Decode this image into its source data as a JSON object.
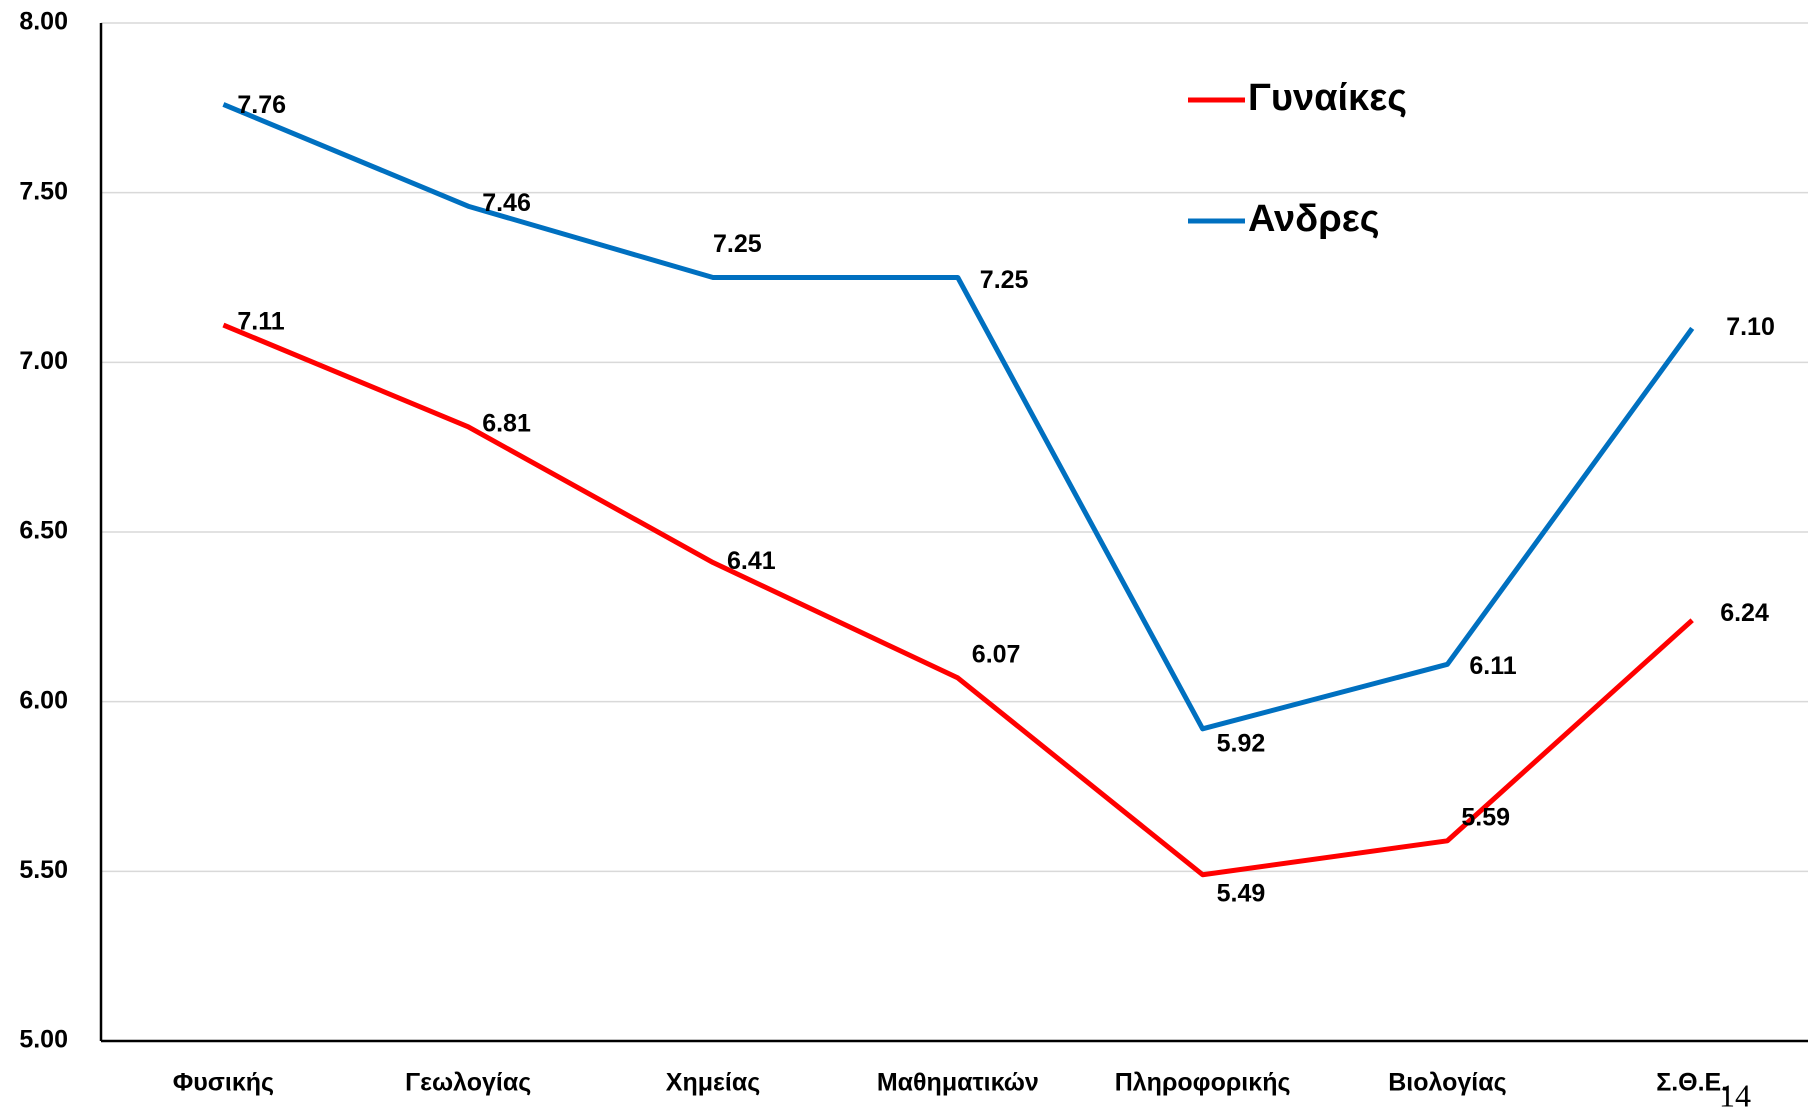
{
  "chart_data": {
    "type": "line",
    "categories": [
      "Φυσικής",
      "Γεωλογίας",
      "Χημείας",
      "Μαθηματικών",
      "Πληροφορικής",
      "Βιολογίας",
      "Σ.Θ.Ε."
    ],
    "series": [
      {
        "name": "Γυναίκες",
        "color": "#ff0000",
        "values": [
          7.11,
          6.81,
          6.41,
          6.07,
          5.49,
          5.59,
          6.24
        ]
      },
      {
        "name": "Ανδρες",
        "color": "#0070c0",
        "values": [
          7.76,
          7.46,
          7.25,
          7.25,
          5.92,
          6.11,
          7.1
        ],
        "value_labels": [
          "7.76",
          "7.46",
          "7.25",
          "7.25",
          "5.92",
          "6.11",
          "7.10"
        ]
      }
    ],
    "ylim": [
      5,
      8
    ],
    "yticks": [
      {
        "value": 5,
        "label": "5.00"
      },
      {
        "value": 5.5,
        "label": "5.50"
      },
      {
        "value": 6,
        "label": "6.00"
      },
      {
        "value": 6.5,
        "label": "6.50"
      },
      {
        "value": 7,
        "label": "7.00"
      },
      {
        "value": 7.5,
        "label": "7.50"
      },
      {
        "value": 8,
        "label": "8.00"
      }
    ],
    "grid": true
  },
  "page_number": "14"
}
